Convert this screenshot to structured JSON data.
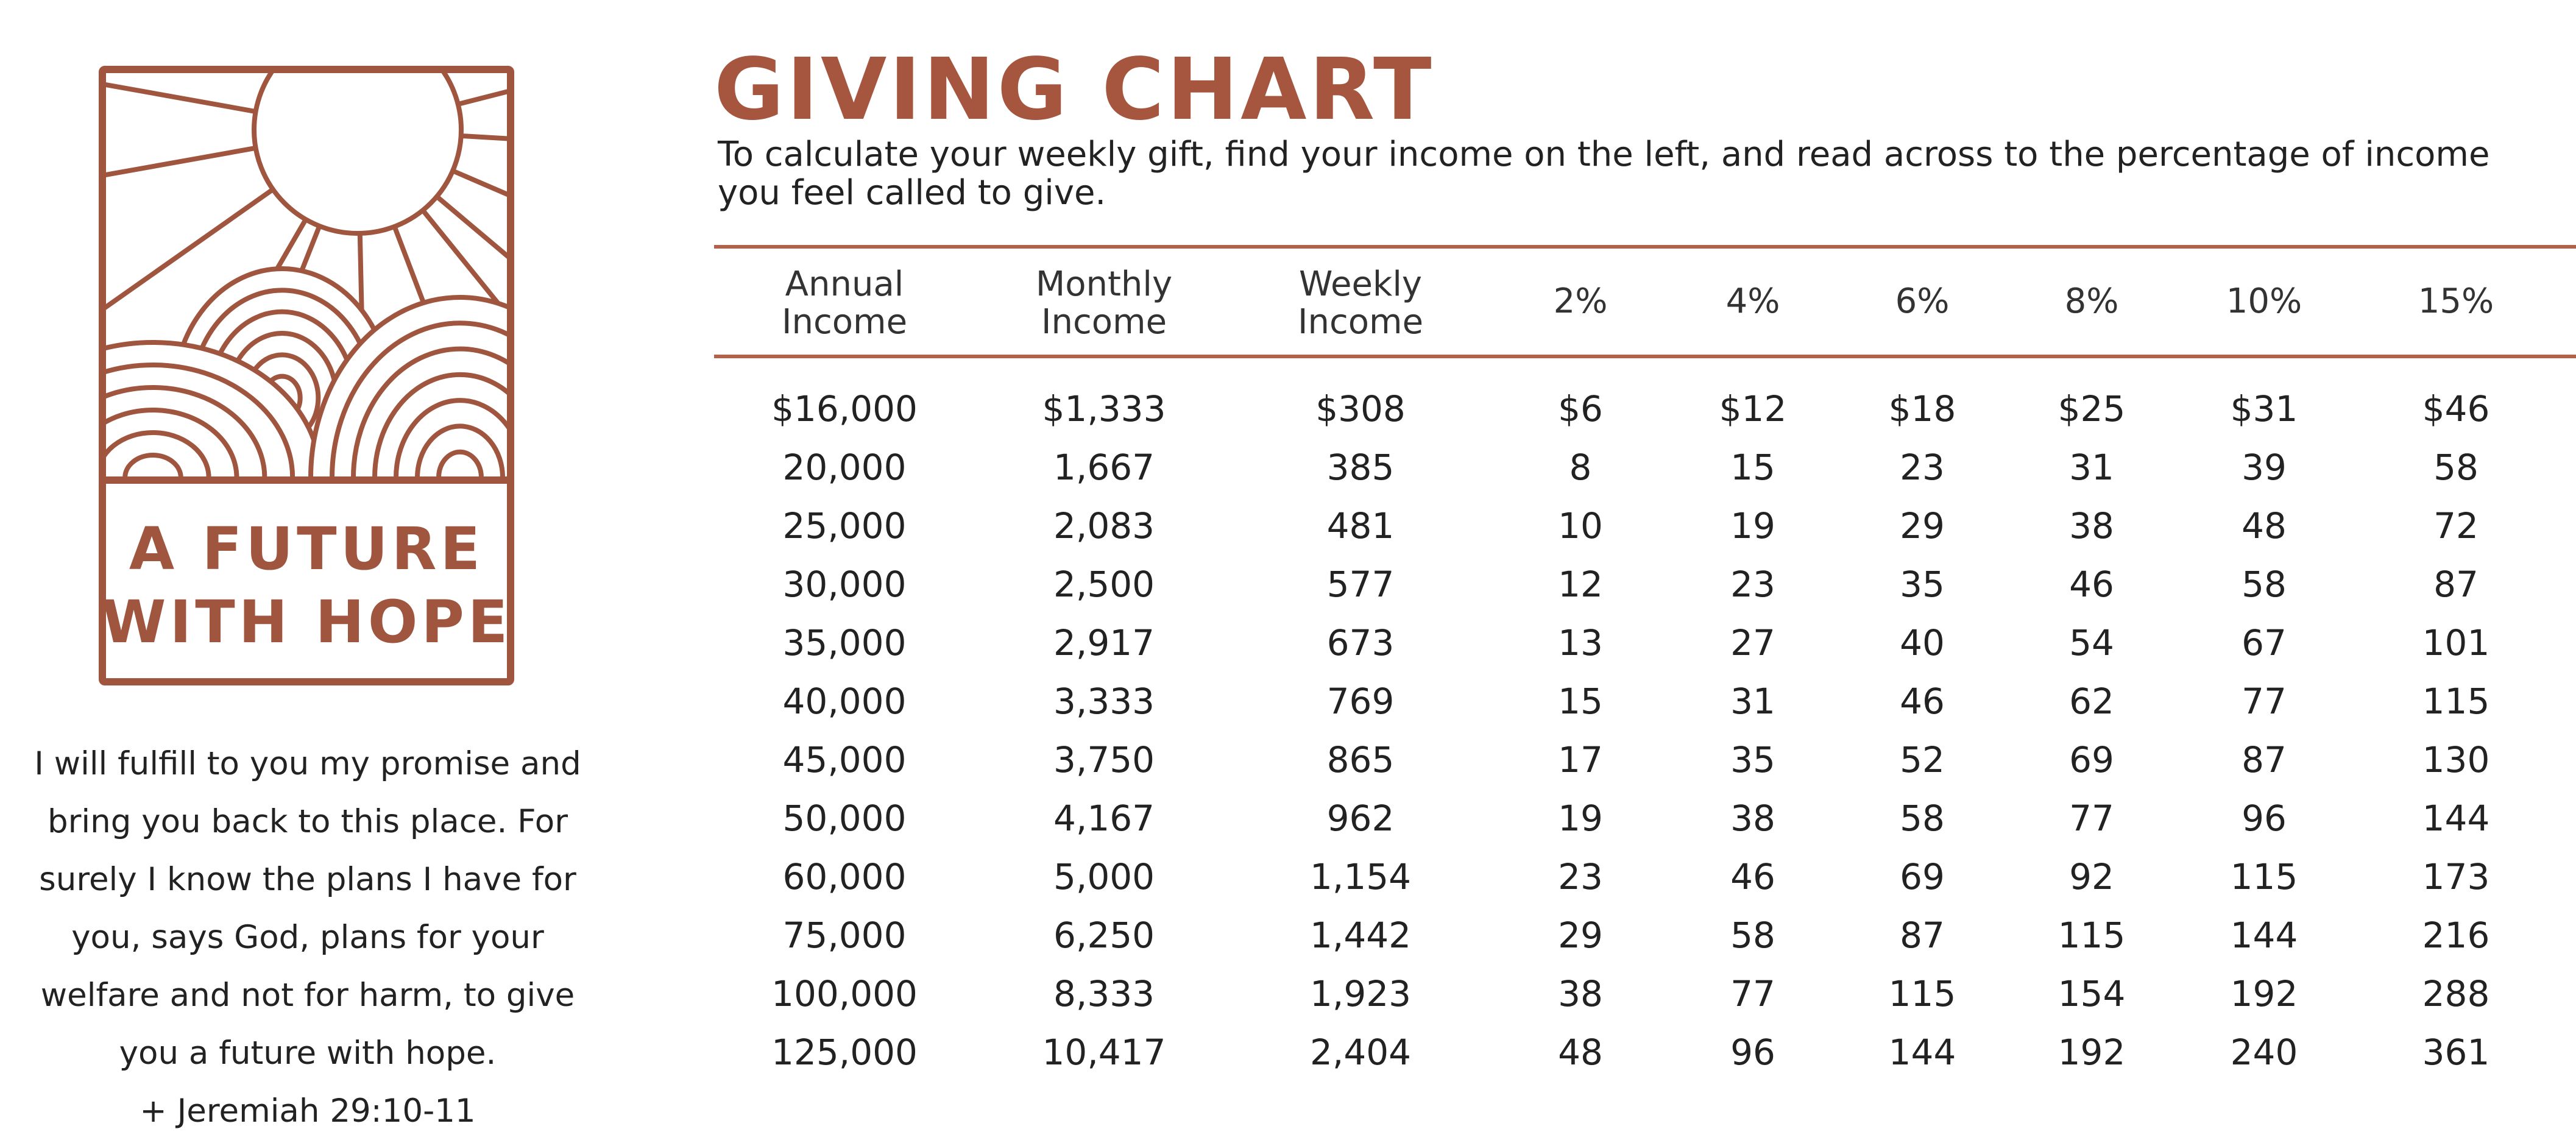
{
  "logo": {
    "line1": "A FUTURE",
    "line2": "WITH HOPE"
  },
  "quote": {
    "lines": [
      "I will fulfill to you my promise and",
      "bring you back to this place. For",
      "surely I know the plans I have for",
      "you, says God, plans for your",
      "welfare and not for harm, to give",
      "you a future with hope.",
      "+ Jeremiah 29:10-11"
    ]
  },
  "title": "GIVING CHART",
  "subtitle": "To calculate your weekly gift, find your income on the left, and read across to the percentage of income you feel called to give.",
  "colors": {
    "accent": "#a6563f",
    "text": "#222222"
  },
  "table": {
    "headers": [
      [
        "Annual",
        "Income"
      ],
      [
        "Monthly",
        "Income"
      ],
      [
        "Weekly",
        "Income"
      ],
      [
        "2%"
      ],
      [
        "4%"
      ],
      [
        "6%"
      ],
      [
        "8%"
      ],
      [
        "10%"
      ],
      [
        "15%"
      ]
    ],
    "rows": [
      [
        "$16,000",
        "$1,333",
        "$308",
        "$6",
        "$12",
        "$18",
        "$25",
        "$31",
        "$46"
      ],
      [
        "20,000",
        "1,667",
        "385",
        "8",
        "15",
        "23",
        "31",
        "39",
        "58"
      ],
      [
        "25,000",
        "2,083",
        "481",
        "10",
        "19",
        "29",
        "38",
        "48",
        "72"
      ],
      [
        "30,000",
        "2,500",
        "577",
        "12",
        "23",
        "35",
        "46",
        "58",
        "87"
      ],
      [
        "35,000",
        "2,917",
        "673",
        "13",
        "27",
        "40",
        "54",
        "67",
        "101"
      ],
      [
        "40,000",
        "3,333",
        "769",
        "15",
        "31",
        "46",
        "62",
        "77",
        "115"
      ],
      [
        "45,000",
        "3,750",
        "865",
        "17",
        "35",
        "52",
        "69",
        "87",
        "130"
      ],
      [
        "50,000",
        "4,167",
        "962",
        "19",
        "38",
        "58",
        "77",
        "96",
        "144"
      ],
      [
        "60,000",
        "5,000",
        "1,154",
        "23",
        "46",
        "69",
        "92",
        "115",
        "173"
      ],
      [
        "75,000",
        "6,250",
        "1,442",
        "29",
        "58",
        "87",
        "115",
        "144",
        "216"
      ],
      [
        "100,000",
        "8,333",
        "1,923",
        "38",
        "77",
        "115",
        "154",
        "192",
        "288"
      ],
      [
        "125,000",
        "10,417",
        "2,404",
        "48",
        "96",
        "144",
        "192",
        "240",
        "361"
      ]
    ]
  }
}
